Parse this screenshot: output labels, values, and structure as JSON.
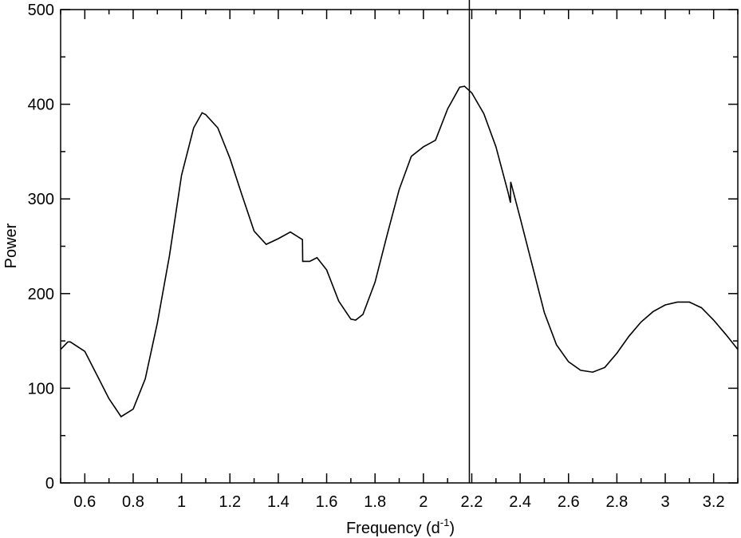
{
  "chart_data": {
    "type": "line",
    "xlabel": [
      "Frequency (d",
      "-1",
      ")"
    ],
    "ylabel": "Power",
    "x": [
      0.5,
      0.53,
      0.54,
      0.6,
      0.65,
      0.7,
      0.75,
      0.8,
      0.85,
      0.9,
      0.95,
      1.0,
      1.05,
      1.085,
      1.1,
      1.15,
      1.2,
      1.25,
      1.3,
      1.35,
      1.4,
      1.45,
      1.5,
      1.501,
      1.53,
      1.56,
      1.6,
      1.65,
      1.7,
      1.72,
      1.75,
      1.8,
      1.85,
      1.9,
      1.95,
      2.0,
      2.05,
      2.1,
      2.15,
      2.17,
      2.2,
      2.25,
      2.3,
      2.35,
      2.36,
      2.361,
      2.4,
      2.45,
      2.5,
      2.55,
      2.6,
      2.65,
      2.7,
      2.75,
      2.8,
      2.85,
      2.9,
      2.95,
      3.0,
      3.05,
      3.1,
      3.15,
      3.2,
      3.25,
      3.3
    ],
    "series": [
      {
        "color": "#000000",
        "values": [
          141,
          149,
          149,
          139,
          114,
          89,
          70,
          78,
          110,
          169,
          240,
          325,
          375,
          391,
          389,
          375,
          343,
          304,
          266,
          252,
          258,
          265,
          257,
          234,
          234,
          238,
          225,
          192,
          173,
          172,
          178,
          212,
          262,
          310,
          345,
          355,
          362,
          395,
          418,
          419,
          412,
          390,
          355,
          307,
          296,
          318,
          280,
          230,
          180,
          146,
          128,
          119,
          117,
          122,
          137,
          155,
          170,
          181,
          188,
          191,
          191,
          185,
          172,
          157,
          141
        ]
      }
    ],
    "vline": 2.19,
    "xlim": [
      0.5,
      3.3
    ],
    "ylim": [
      0,
      500
    ],
    "xticks": [
      0.6,
      0.8,
      1,
      1.2,
      1.4,
      1.6,
      1.8,
      2,
      2.2,
      2.4,
      2.6,
      2.8,
      3,
      3.2
    ],
    "yticks": [
      0,
      100,
      200,
      300,
      400,
      500
    ],
    "xminorticks": [
      0.5,
      0.7,
      0.9,
      1.1,
      1.3,
      1.5,
      1.7,
      1.9,
      2.1,
      2.3,
      2.5,
      2.7,
      2.9,
      3.1,
      3.3
    ],
    "yminorticks": [
      50,
      150,
      250,
      350,
      450
    ]
  }
}
